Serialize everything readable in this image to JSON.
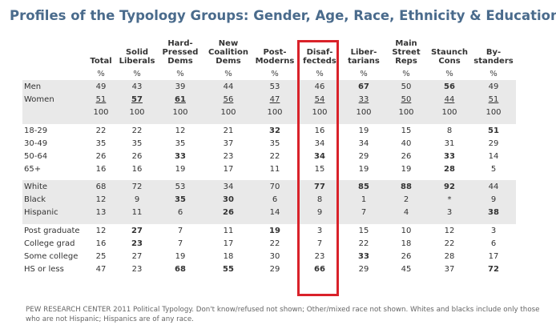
{
  "title": "Profiles of the Typology Groups: Gender, Age, Race, Ethnicity & Education",
  "columns": [
    "Total",
    "Solid\nLiberals",
    "Hard-\nPressed\nDems",
    "New\nCoalition\nDems",
    "Post-\nModerns",
    "Disaf-\nfecteds",
    "Liber-\ntarians",
    "Main\nStreet\nReps",
    "Staunch\nCons",
    "By-\nstanders"
  ],
  "pct_symbol": "%",
  "groups": [
    {
      "shaded": true,
      "rows": [
        {
          "label": "Men",
          "values": [
            "49",
            "43",
            "39",
            "44",
            "53",
            "46",
            "67",
            "50",
            "56",
            "49"
          ],
          "bold": [
            6,
            8
          ],
          "underline": false
        },
        {
          "label": "Women",
          "values": [
            "51",
            "57",
            "61",
            "56",
            "47",
            "54",
            "33",
            "50",
            "44",
            "51"
          ],
          "bold": [
            1,
            2
          ],
          "underline": true
        },
        {
          "label": "",
          "values": [
            "100",
            "100",
            "100",
            "100",
            "100",
            "100",
            "100",
            "100",
            "100",
            "100"
          ],
          "bold": [],
          "underline": false
        }
      ]
    },
    {
      "shaded": false,
      "rows": [
        {
          "label": "18-29",
          "values": [
            "22",
            "22",
            "12",
            "21",
            "32",
            "16",
            "19",
            "15",
            "8",
            "51"
          ],
          "bold": [
            4,
            9
          ],
          "underline": false
        },
        {
          "label": "30-49",
          "values": [
            "35",
            "35",
            "35",
            "37",
            "35",
            "34",
            "34",
            "40",
            "31",
            "29"
          ],
          "bold": [],
          "underline": false
        },
        {
          "label": "50-64",
          "values": [
            "26",
            "26",
            "33",
            "23",
            "22",
            "34",
            "29",
            "26",
            "33",
            "14"
          ],
          "bold": [
            2,
            5,
            8
          ],
          "underline": false
        },
        {
          "label": "65+",
          "values": [
            "16",
            "16",
            "19",
            "17",
            "11",
            "15",
            "19",
            "19",
            "28",
            "5"
          ],
          "bold": [
            8
          ],
          "underline": false
        }
      ]
    },
    {
      "shaded": true,
      "rows": [
        {
          "label": "White",
          "values": [
            "68",
            "72",
            "53",
            "34",
            "70",
            "77",
            "85",
            "88",
            "92",
            "44"
          ],
          "bold": [
            5,
            6,
            7,
            8
          ],
          "underline": false
        },
        {
          "label": "Black",
          "values": [
            "12",
            "9",
            "35",
            "30",
            "6",
            "8",
            "1",
            "2",
            "*",
            "9"
          ],
          "bold": [
            2,
            3
          ],
          "underline": false
        },
        {
          "label": "Hispanic",
          "values": [
            "13",
            "11",
            "6",
            "26",
            "14",
            "9",
            "7",
            "4",
            "3",
            "38"
          ],
          "bold": [
            3,
            9
          ],
          "underline": false
        }
      ]
    },
    {
      "shaded": false,
      "rows": [
        {
          "label": "Post graduate",
          "values": [
            "12",
            "27",
            "7",
            "11",
            "19",
            "3",
            "15",
            "10",
            "12",
            "3"
          ],
          "bold": [
            1,
            4
          ],
          "underline": false
        },
        {
          "label": "College grad",
          "values": [
            "16",
            "23",
            "7",
            "17",
            "22",
            "7",
            "22",
            "18",
            "22",
            "6"
          ],
          "bold": [
            1
          ],
          "underline": false
        },
        {
          "label": "Some college",
          "values": [
            "25",
            "27",
            "19",
            "18",
            "30",
            "23",
            "33",
            "26",
            "28",
            "17"
          ],
          "bold": [
            6
          ],
          "underline": false
        },
        {
          "label": "HS or less",
          "values": [
            "47",
            "23",
            "68",
            "55",
            "29",
            "66",
            "29",
            "45",
            "37",
            "72"
          ],
          "bold": [
            2,
            3,
            5,
            9
          ],
          "underline": false
        }
      ]
    }
  ],
  "highlighted_column": "Disaf-\nfecteds",
  "footer": "PEW RESEARCH CENTER 2011 Political Typology. Don't know/refused not shown; Other/mixed race not shown. Whites and blacks include only those who are not Hispanic; Hispanics are of any race.",
  "colors": {
    "title": "#4a6b8c",
    "highlight": "#d9222a",
    "shade": "#e9e9e9"
  }
}
